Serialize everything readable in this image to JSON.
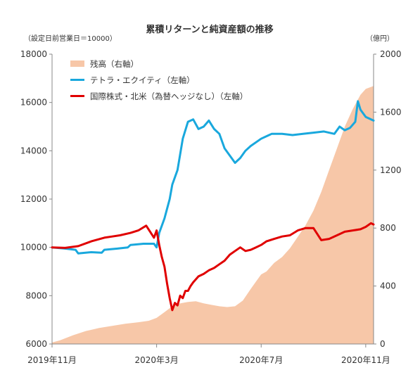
{
  "chart_data": {
    "type": "line",
    "title": "累積リターンと純資産額の推移",
    "left_axis_note": "（設定日前営業日＝10000）",
    "right_axis_note": "（億円）",
    "x_tick_labels": [
      "2019年11月",
      "2020年3月",
      "2020年7月",
      "2020年11月"
    ],
    "x_tick_positions": [
      0,
      4,
      8,
      12
    ],
    "x_range": [
      0,
      12.3
    ],
    "y_left": {
      "range": [
        6000,
        18000
      ],
      "ticks": [
        "18000",
        "16000",
        "14000",
        "12000",
        "10000",
        "8000",
        "6000"
      ]
    },
    "y_right": {
      "range": [
        0,
        2000
      ],
      "ticks": [
        "2000",
        "1600",
        "1200",
        "800",
        "400",
        "0"
      ]
    },
    "grid": false,
    "legend_position": "top-left",
    "colors": {
      "area": "#f7c7a8",
      "tetra": "#19a8dd",
      "intl": "#e00000"
    },
    "series": [
      {
        "name": "残高（右軸）",
        "axis": "right",
        "kind": "area",
        "x": [
          0,
          0.3,
          0.8,
          1.3,
          1.8,
          2.3,
          2.8,
          3.3,
          3.7,
          4.0,
          4.3,
          4.6,
          4.9,
          5.2,
          5.5,
          5.8,
          6.1,
          6.4,
          6.7,
          7.0,
          7.3,
          7.6,
          7.8,
          8.0,
          8.2,
          8.5,
          8.8,
          9.1,
          9.4,
          9.7,
          10.0,
          10.3,
          10.6,
          10.9,
          11.2,
          11.5,
          11.8,
          12.0,
          12.3
        ],
        "values": [
          10,
          25,
          60,
          90,
          110,
          125,
          140,
          150,
          160,
          180,
          220,
          260,
          280,
          290,
          295,
          280,
          270,
          260,
          255,
          260,
          300,
          380,
          430,
          480,
          500,
          560,
          600,
          660,
          740,
          820,
          920,
          1050,
          1200,
          1350,
          1500,
          1620,
          1720,
          1760,
          1780
        ]
      },
      {
        "name": "テトラ・エクイティ（左軸）",
        "axis": "left",
        "kind": "line",
        "x": [
          0,
          0.5,
          0.9,
          1.0,
          1.5,
          1.9,
          2.0,
          2.5,
          2.9,
          3.0,
          3.5,
          3.9,
          4.0,
          4.1,
          4.3,
          4.4,
          4.5,
          4.6,
          4.8,
          5.0,
          5.2,
          5.4,
          5.6,
          5.8,
          6.0,
          6.2,
          6.4,
          6.6,
          6.8,
          7.0,
          7.2,
          7.4,
          7.6,
          8.0,
          8.4,
          8.8,
          9.2,
          9.6,
          10.0,
          10.4,
          10.8,
          11.0,
          11.2,
          11.4,
          11.6,
          11.7,
          11.8,
          12.0,
          12.3
        ],
        "values": [
          10000,
          9950,
          9900,
          9750,
          9800,
          9780,
          9900,
          9950,
          10000,
          10100,
          10150,
          10150,
          10000,
          10600,
          11200,
          11600,
          12000,
          12600,
          13200,
          14500,
          15200,
          15300,
          14900,
          15000,
          15250,
          14900,
          14700,
          14100,
          13800,
          13500,
          13700,
          14000,
          14200,
          14500,
          14700,
          14700,
          14650,
          14700,
          14750,
          14800,
          14700,
          15000,
          14850,
          14950,
          15200,
          16050,
          15700,
          15400,
          15250
        ]
      },
      {
        "name": "国際株式・北米（為替ヘッジなし）（左軸）",
        "axis": "left",
        "kind": "line",
        "x": [
          0,
          0.5,
          1.0,
          1.5,
          2.0,
          2.3,
          2.6,
          3.0,
          3.3,
          3.6,
          3.9,
          4.0,
          4.1,
          4.2,
          4.3,
          4.4,
          4.5,
          4.6,
          4.7,
          4.8,
          4.9,
          5.0,
          5.1,
          5.2,
          5.3,
          5.4,
          5.6,
          5.8,
          6.0,
          6.2,
          6.4,
          6.6,
          6.8,
          7.0,
          7.2,
          7.4,
          7.6,
          7.8,
          8.0,
          8.2,
          8.5,
          8.8,
          9.1,
          9.4,
          9.7,
          10.0,
          10.3,
          10.6,
          10.9,
          11.2,
          11.5,
          11.8,
          12.0,
          12.2,
          12.3
        ],
        "values": [
          10000,
          9980,
          10050,
          10250,
          10400,
          10450,
          10500,
          10600,
          10700,
          10900,
          10400,
          10700,
          10100,
          9600,
          9200,
          8500,
          7900,
          7400,
          7700,
          7600,
          8000,
          7900,
          8200,
          8200,
          8400,
          8550,
          8800,
          8900,
          9050,
          9150,
          9300,
          9450,
          9700,
          9850,
          10000,
          9850,
          9900,
          10000,
          10100,
          10250,
          10350,
          10450,
          10500,
          10700,
          10800,
          10800,
          10300,
          10350,
          10500,
          10650,
          10700,
          10750,
          10850,
          11000,
          10950
        ]
      }
    ]
  }
}
